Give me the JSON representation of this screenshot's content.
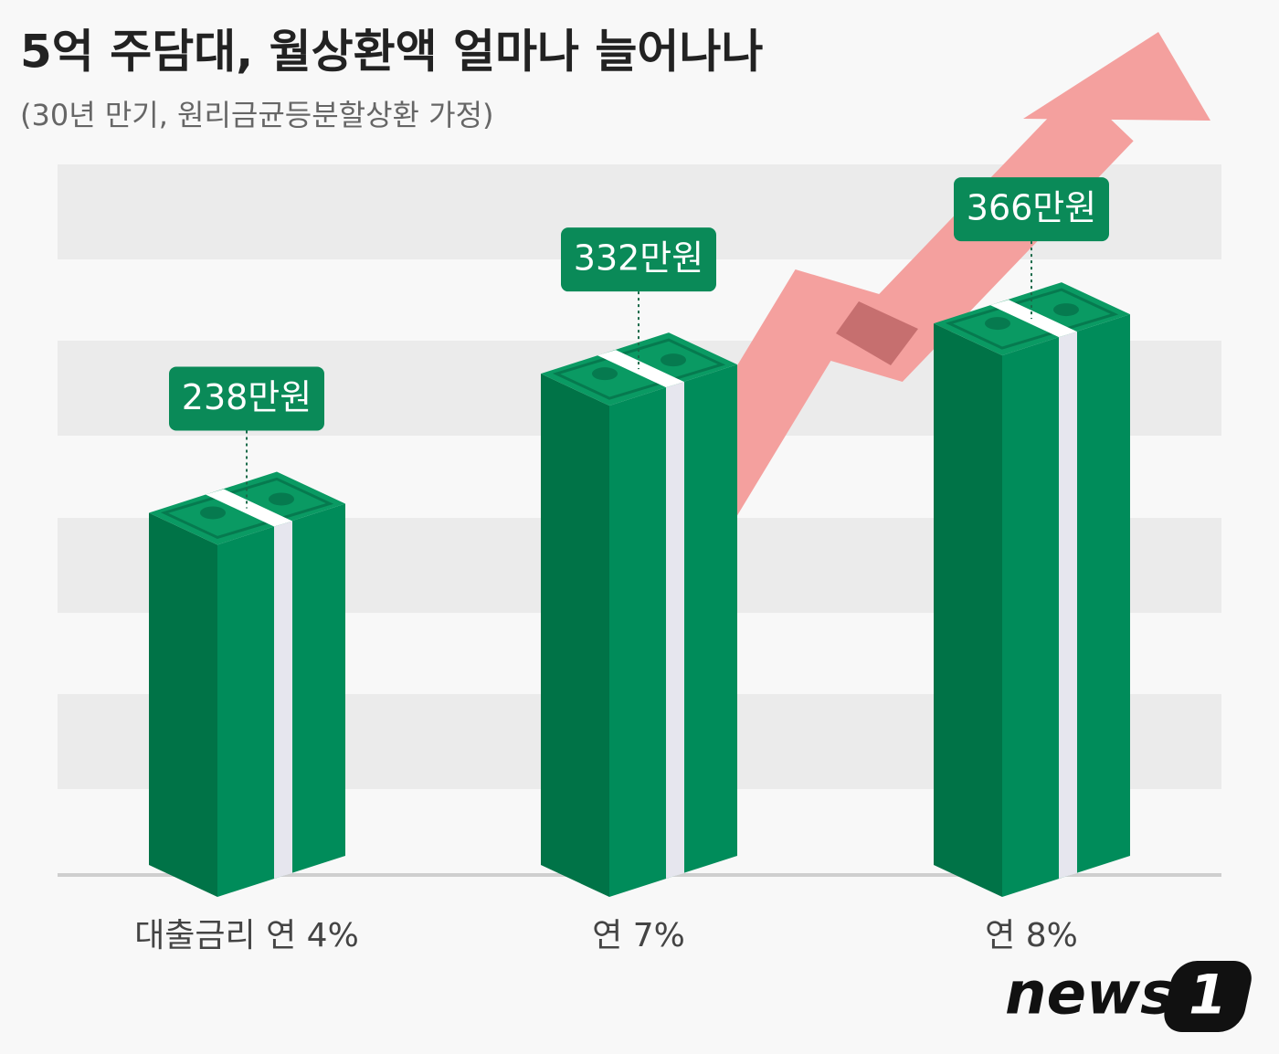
{
  "chart_data": {
    "type": "bar",
    "title": "5억 주담대, 월상환액 얼마나 늘어나나",
    "subtitle": "(30년 만기, 원리금균등분할상환 가정)",
    "categories": [
      "대출금리 연 4%",
      "연 7%",
      "연 8%"
    ],
    "values": [
      238,
      332,
      366
    ],
    "value_labels": [
      "238만원",
      "332만원",
      "366만원"
    ],
    "color": "#008c5a"
  },
  "logo": {
    "word": "news",
    "mark": "1"
  }
}
